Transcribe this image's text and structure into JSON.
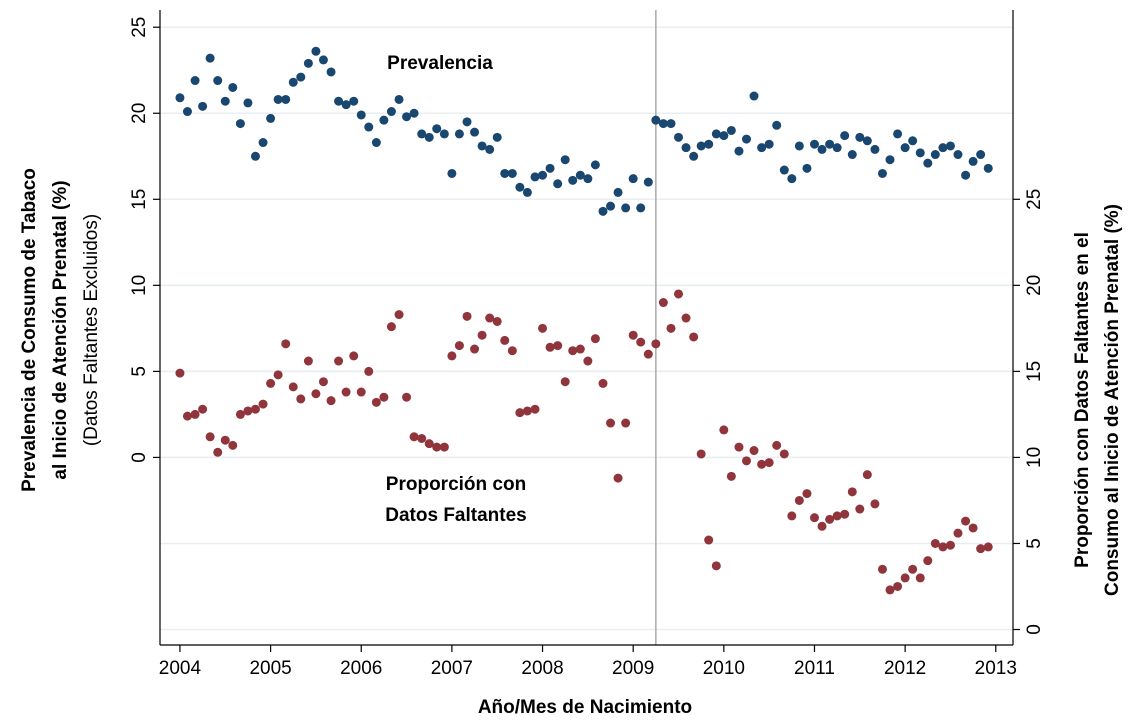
{
  "chart_data": {
    "type": "scatter",
    "x_label": "Año/Mes de Nacimiento",
    "y_label": [
      "Prevalencia de Consumo de Tabaco",
      "al Inicio de Atención Prenatal (%)",
      "(Datos Faltantes Excluidos)"
    ],
    "y2_label": [
      "Proporción con Datos Faltantes en el",
      "Consumo al Inicio de Atención Prenatal (%)"
    ],
    "xlim": [
      2003.78,
      2013.19
    ],
    "xticks": [
      2004,
      2005,
      2006,
      2007,
      2008,
      2009,
      2010,
      2011,
      2012,
      2013
    ],
    "ylim": [
      -10.9,
      26
    ],
    "yticks": [
      0,
      5,
      10,
      15,
      20,
      25
    ],
    "y2lim": [
      -0.9,
      36
    ],
    "y2ticks": [
      0,
      5,
      10,
      15,
      20,
      25
    ],
    "grid": true,
    "xline": 2009.25,
    "x": [
      2004,
      2004.083,
      2004.167,
      2004.25,
      2004.333,
      2004.417,
      2004.5,
      2004.583,
      2004.667,
      2004.75,
      2004.833,
      2004.917,
      2005,
      2005.083,
      2005.167,
      2005.25,
      2005.333,
      2005.417,
      2005.5,
      2005.583,
      2005.667,
      2005.75,
      2005.833,
      2005.917,
      2006,
      2006.083,
      2006.167,
      2006.25,
      2006.333,
      2006.417,
      2006.5,
      2006.583,
      2006.667,
      2006.75,
      2006.833,
      2006.917,
      2007,
      2007.083,
      2007.167,
      2007.25,
      2007.333,
      2007.417,
      2007.5,
      2007.583,
      2007.667,
      2007.75,
      2007.833,
      2007.917,
      2008,
      2008.083,
      2008.167,
      2008.25,
      2008.333,
      2008.417,
      2008.5,
      2008.583,
      2008.667,
      2008.75,
      2008.833,
      2008.917,
      2009,
      2009.083,
      2009.167,
      2009.25,
      2009.333,
      2009.417,
      2009.5,
      2009.583,
      2009.667,
      2009.75,
      2009.833,
      2009.917,
      2010,
      2010.083,
      2010.167,
      2010.25,
      2010.333,
      2010.417,
      2010.5,
      2010.583,
      2010.667,
      2010.75,
      2010.833,
      2010.917,
      2011,
      2011.083,
      2011.167,
      2011.25,
      2011.333,
      2011.417,
      2011.5,
      2011.583,
      2011.667,
      2011.75,
      2011.833,
      2011.917,
      2012,
      2012.083,
      2012.167,
      2012.25,
      2012.333,
      2012.417,
      2012.5,
      2012.583,
      2012.667,
      2012.75,
      2012.833,
      2012.917
    ],
    "series": [
      {
        "name": "Prevalencia",
        "color": "#1a476f",
        "values": [
          20.9,
          20.1,
          21.9,
          20.4,
          23.2,
          21.9,
          20.7,
          21.5,
          19.4,
          20.6,
          17.5,
          18.3,
          19.7,
          20.8,
          20.8,
          21.8,
          22.1,
          22.9,
          23.6,
          23.1,
          22.4,
          20.7,
          20.5,
          20.7,
          19.9,
          19.2,
          18.3,
          19.6,
          20.1,
          20.8,
          19.8,
          20.0,
          18.8,
          18.6,
          19.1,
          18.8,
          16.5,
          18.8,
          19.5,
          18.9,
          18.1,
          17.9,
          18.6,
          16.5,
          16.5,
          15.7,
          15.4,
          16.3,
          16.4,
          16.8,
          15.9,
          17.3,
          16.1,
          16.4,
          16.2,
          17.0,
          14.3,
          14.6,
          15.4,
          14.5,
          16.2,
          14.5,
          16.0,
          19.6,
          19.4,
          19.4,
          18.6,
          18.0,
          17.5,
          18.1,
          18.2,
          18.8,
          18.7,
          19.0,
          17.8,
          18.5,
          21.0,
          18.0,
          18.2,
          19.3,
          16.7,
          16.2,
          18.1,
          16.8,
          18.2,
          17.9,
          18.2,
          18.0,
          18.7,
          17.6,
          18.6,
          18.4,
          17.9,
          16.5,
          17.3,
          18.8,
          18.0,
          18.4,
          17.7,
          17.1,
          17.6,
          18.0,
          18.1,
          17.6,
          16.4,
          17.2,
          17.6,
          16.8
        ]
      },
      {
        "name": [
          "Proporción con",
          "Datos Faltantes"
        ],
        "color": "#90353b",
        "axis": "y2",
        "values": [
          14.9,
          12.4,
          12.5,
          12.8,
          11.2,
          10.3,
          11.0,
          10.7,
          12.5,
          12.7,
          12.8,
          13.1,
          14.3,
          14.8,
          16.6,
          14.1,
          13.4,
          15.6,
          13.7,
          14.4,
          13.3,
          15.6,
          13.8,
          15.9,
          13.8,
          15.0,
          13.2,
          13.5,
          17.6,
          18.3,
          13.5,
          11.2,
          11.1,
          10.8,
          10.6,
          10.6,
          15.9,
          16.5,
          18.2,
          16.3,
          17.1,
          18.1,
          17.9,
          16.8,
          16.2,
          12.6,
          12.7,
          12.8,
          17.5,
          16.4,
          16.5,
          14.4,
          16.2,
          16.3,
          15.6,
          16.9,
          14.3,
          12.0,
          8.8,
          12.0,
          17.1,
          16.7,
          16.0,
          16.6,
          19.0,
          17.5,
          19.5,
          18.1,
          17.0,
          10.2,
          5.2,
          3.7,
          11.6,
          8.9,
          10.6,
          9.8,
          10.4,
          9.6,
          9.7,
          10.7,
          10.2,
          6.6,
          7.5,
          7.9,
          6.5,
          6.0,
          6.4,
          6.6,
          6.7,
          8.0,
          7.0,
          9.0,
          7.3,
          3.5,
          2.3,
          2.5,
          3.0,
          3.5,
          3.0,
          4.0,
          5.0,
          4.8,
          4.9,
          5.6,
          6.3,
          5.9,
          4.7,
          4.8
        ]
      }
    ]
  }
}
